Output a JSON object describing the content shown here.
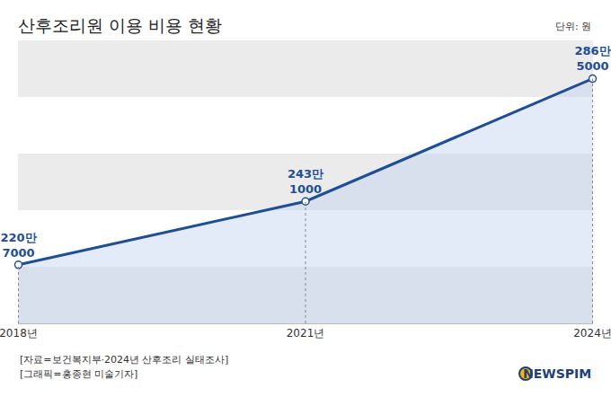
{
  "chart_data": {
    "type": "line",
    "title": "산후조리원 이용 비용 현황",
    "unit": "단위: 원",
    "source": "[자료=보건복지부·2024년 산후조리 실태조사]",
    "credit": "[그래픽=홍종현 미술기자]",
    "brand": "NEWSPIM",
    "categories": [
      "2018년",
      "2021년",
      "2024년"
    ],
    "values": [
      2207000,
      2431000,
      2865000
    ],
    "value_labels": [
      "220만\n7000",
      "243만\n1000",
      "286만\n5000"
    ],
    "data_labels": true,
    "color": "#1f4e96",
    "marker": "circle",
    "line_style": "solid",
    "ylim": [
      2000000,
      3000000
    ],
    "yticks": [
      2000000,
      2200000,
      2400000,
      2600000,
      2800000,
      3000000
    ],
    "grid": true,
    "tick_labels": "x"
  }
}
